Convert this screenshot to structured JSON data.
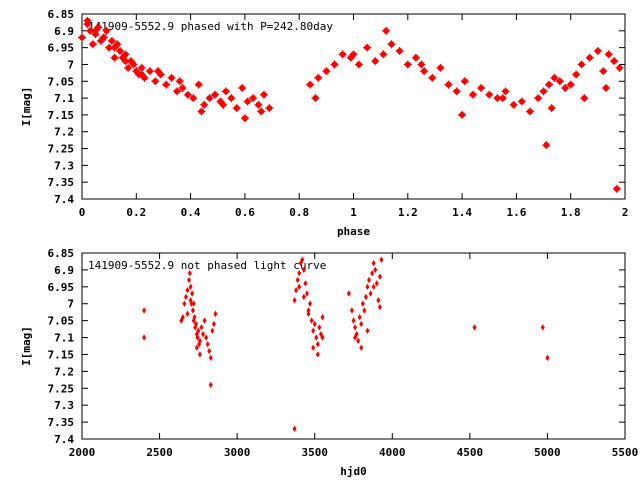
{
  "chart_data": [
    {
      "type": "scatter",
      "title": "141909-5552.9 phased with P=242.80day",
      "xlabel": "phase",
      "ylabel": "I[mag]",
      "xlim": [
        0,
        2
      ],
      "ylim": [
        6.85,
        7.4
      ],
      "y_inverted": true,
      "xticks": [
        "0",
        "0.2",
        "0.4",
        "0.6",
        "0.8",
        "1",
        "1.2",
        "1.4",
        "1.6",
        "1.8",
        "2"
      ],
      "yticks": [
        "6.85",
        "6.9",
        "6.95",
        "7",
        "7.05",
        "7.1",
        "7.15",
        "7.2",
        "7.25",
        "7.3",
        "7.35",
        "7.4"
      ],
      "grid": false,
      "marker_color": "#ff0000",
      "marker_shape": "filled-circle-plus",
      "series": [
        {
          "x": [
            0.0,
            0.02,
            0.03,
            0.04,
            0.05,
            0.06,
            0.07,
            0.08,
            0.09,
            0.1,
            0.11,
            0.12,
            0.13,
            0.14,
            0.15,
            0.16,
            0.17,
            0.18,
            0.19,
            0.2,
            0.21,
            0.22,
            0.23,
            0.25,
            0.27,
            0.29,
            0.31,
            0.33,
            0.35,
            0.37,
            0.39,
            0.41,
            0.43,
            0.45,
            0.47,
            0.49,
            0.51,
            0.53,
            0.55,
            0.57,
            0.59,
            0.61,
            0.63,
            0.65,
            0.67,
            0.69,
            0.02,
            0.05,
            0.08,
            0.12,
            0.16,
            0.22,
            0.28,
            0.36,
            0.44,
            0.52,
            0.6,
            0.66,
            0.84,
            0.87,
            0.9,
            0.93,
            0.96,
            0.99,
            1.02,
            1.05,
            1.08,
            1.11,
            1.14,
            1.17,
            1.2,
            1.23,
            1.26,
            1.29,
            1.32,
            1.35,
            1.38,
            1.41,
            1.44,
            1.47,
            1.5,
            1.53,
            1.56,
            1.59,
            1.62,
            1.65,
            1.68,
            1.7,
            1.72,
            1.74,
            1.76,
            1.78,
            1.8,
            1.82,
            1.84,
            1.87,
            1.9,
            1.92,
            1.94,
            1.96,
            1.98,
            0.86,
            1.0,
            1.12,
            1.25,
            1.4,
            1.55,
            1.71,
            1.73,
            1.85,
            1.93,
            1.97
          ],
          "y": [
            6.92,
            6.87,
            6.9,
            6.94,
            6.91,
            6.89,
            6.93,
            6.92,
            6.9,
            6.95,
            6.93,
            6.98,
            6.94,
            6.96,
            6.98,
            6.97,
            7.01,
            6.99,
            7.0,
            7.02,
            7.03,
            7.01,
            7.04,
            7.02,
            7.05,
            7.03,
            7.06,
            7.04,
            7.08,
            7.07,
            7.09,
            7.1,
            7.06,
            7.12,
            7.1,
            7.09,
            7.11,
            7.08,
            7.1,
            7.13,
            7.07,
            7.11,
            7.1,
            7.12,
            7.09,
            7.13,
            6.88,
            6.9,
            6.92,
            6.95,
            6.99,
            7.03,
            7.02,
            7.05,
            7.14,
            7.12,
            7.16,
            7.14,
            7.06,
            7.04,
            7.02,
            7.0,
            6.97,
            6.98,
            7.0,
            6.95,
            6.99,
            6.97,
            6.94,
            6.96,
            7.0,
            6.98,
            7.02,
            7.04,
            7.01,
            7.06,
            7.08,
            7.05,
            7.09,
            7.07,
            7.09,
            7.1,
            7.08,
            7.12,
            7.11,
            7.14,
            7.1,
            7.08,
            7.06,
            7.04,
            7.05,
            7.07,
            7.06,
            7.03,
            7.0,
            6.98,
            6.96,
            7.02,
            6.97,
            6.99,
            7.01,
            7.1,
            6.97,
            6.9,
            7.0,
            7.15,
            7.1,
            7.24,
            7.13,
            7.1,
            7.07,
            7.37
          ]
        }
      ]
    },
    {
      "type": "scatter",
      "title": "141909-5552.9 not phased light curve",
      "xlabel": "hjd0",
      "ylabel": "I[mag]",
      "xlim": [
        2000,
        5500
      ],
      "ylim": [
        6.85,
        7.4
      ],
      "y_inverted": true,
      "xticks": [
        "2000",
        "2500",
        "3000",
        "3500",
        "4000",
        "4500",
        "5000",
        "5500"
      ],
      "yticks": [
        "6.85",
        "6.9",
        "6.95",
        "7",
        "7.05",
        "7.1",
        "7.15",
        "7.2",
        "7.25",
        "7.3",
        "7.35",
        "7.4"
      ],
      "grid": false,
      "marker_color": "#ff0000",
      "marker_shape": "diamond",
      "series": [
        {
          "x": [
            2400,
            2400,
            2640,
            2650,
            2660,
            2670,
            2680,
            2690,
            2695,
            2700,
            2705,
            2710,
            2715,
            2720,
            2725,
            2730,
            2735,
            2740,
            2745,
            2750,
            2755,
            2760,
            2770,
            2790,
            2800,
            2810,
            2820,
            2830,
            2840,
            2850,
            2860,
            2680,
            2700,
            2720,
            2740,
            2760,
            2780,
            2830,
            3370,
            3380,
            3390,
            3400,
            3410,
            3420,
            3430,
            3440,
            3450,
            3460,
            3470,
            3480,
            3490,
            3500,
            3510,
            3520,
            3530,
            3540,
            3550,
            3400,
            3430,
            3460,
            3490,
            3520,
            3550,
            3370,
            3720,
            3740,
            3750,
            3760,
            3770,
            3780,
            3790,
            3800,
            3810,
            3820,
            3830,
            3840,
            3850,
            3860,
            3870,
            3880,
            3890,
            3900,
            3910,
            3920,
            3930,
            3760,
            3800,
            3840,
            3880,
            3920,
            4530,
            4970,
            5000
          ],
          "y": [
            7.02,
            7.1,
            7.05,
            7.04,
            7.0,
            6.98,
            6.96,
            6.93,
            6.91,
            6.99,
            7.0,
            6.97,
            7.02,
            7.05,
            7.04,
            7.07,
            7.06,
            7.09,
            7.1,
            7.08,
            7.12,
            7.15,
            7.07,
            7.05,
            7.1,
            7.12,
            7.14,
            7.16,
            7.08,
            7.06,
            7.03,
            7.03,
            6.95,
            7.0,
            7.13,
            7.11,
            7.09,
            7.24,
            6.99,
            6.96,
            6.93,
            6.91,
            6.88,
            6.87,
            6.9,
            6.94,
            6.97,
            7.02,
            7.0,
            7.05,
            7.08,
            7.06,
            7.1,
            7.12,
            7.07,
            7.09,
            7.04,
            6.95,
            6.98,
            7.03,
            7.13,
            7.15,
            7.1,
            7.37,
            6.97,
            7.02,
            7.05,
            7.07,
            7.09,
            7.11,
            7.04,
            7.06,
            7.0,
            7.02,
            6.98,
            6.95,
            6.93,
            6.97,
            6.91,
            6.88,
            6.9,
            6.94,
            6.99,
            7.01,
            6.87,
            7.1,
            7.13,
            7.08,
            6.95,
            6.92,
            7.07,
            7.07,
            7.16
          ]
        }
      ]
    }
  ]
}
